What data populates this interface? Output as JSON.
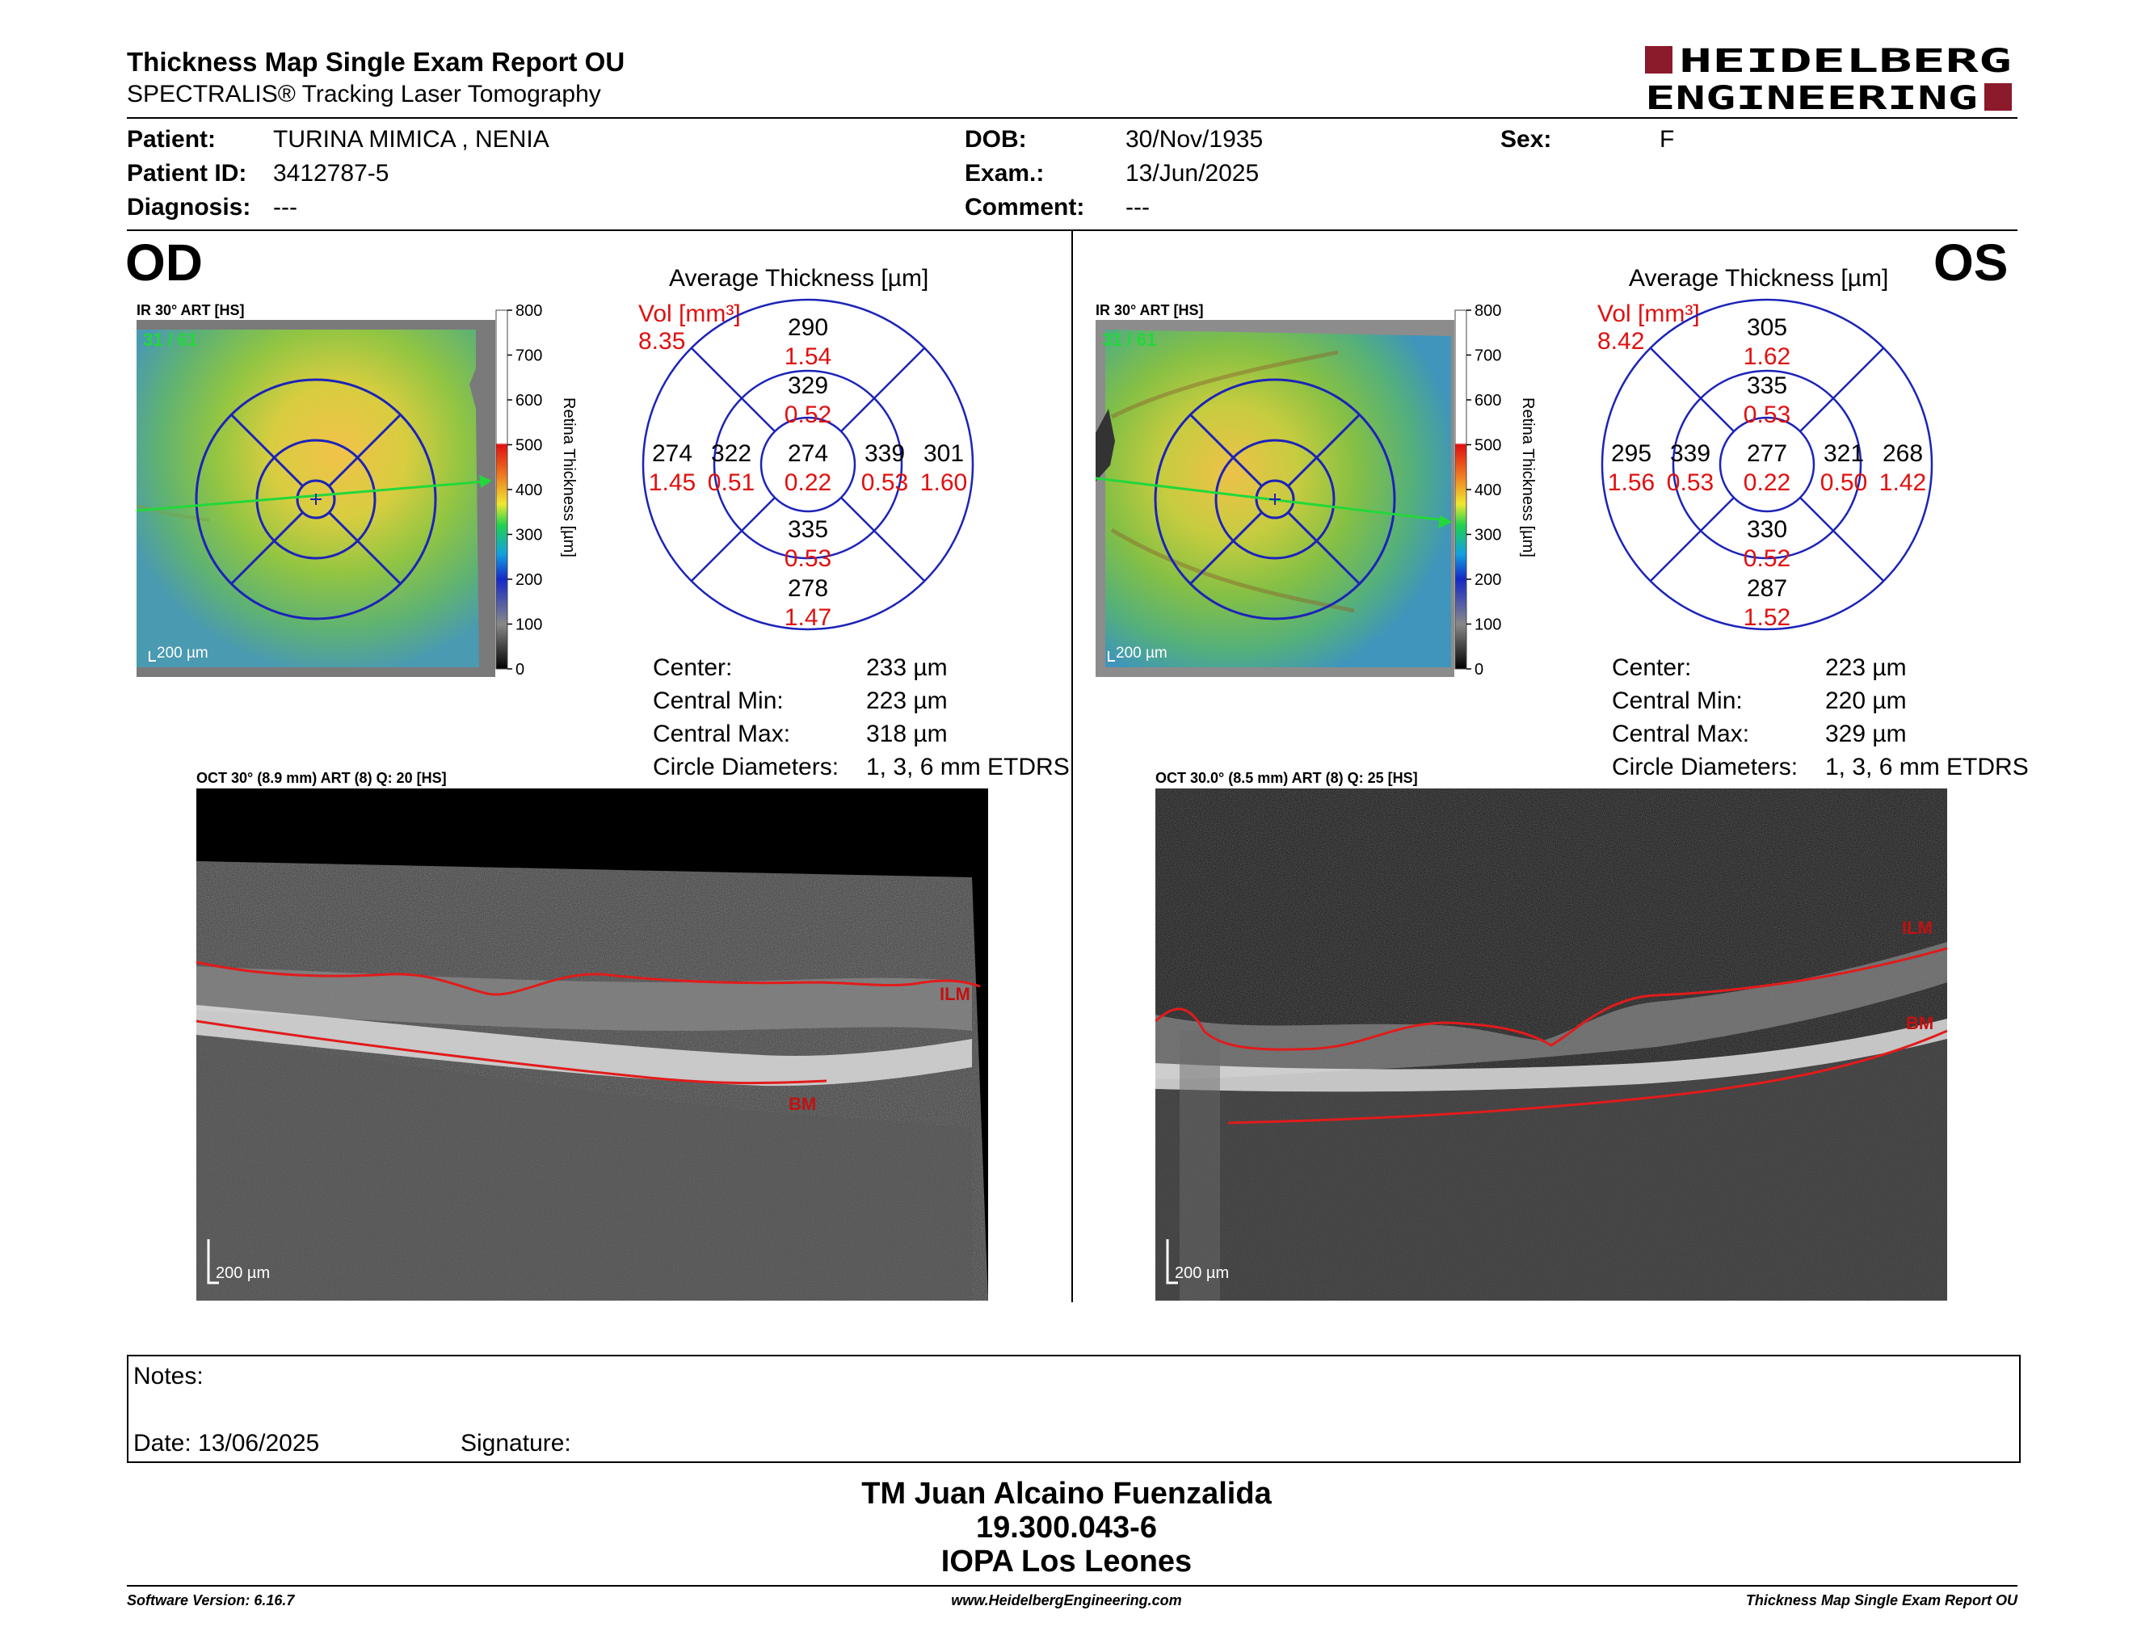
{
  "header": {
    "title": "Thickness Map Single Exam Report OU",
    "subtitle": "SPECTRALIS® Tracking Laser Tomography",
    "logo_line1": "HEIDELBERG",
    "logo_line2": "ENGINEERING",
    "brand_color": "#8b1a2b"
  },
  "patient": {
    "patient_label": "Patient:",
    "patient_value": "TURINA MIMICA , NENIA",
    "id_label": "Patient ID:",
    "id_value": "3412787-5",
    "diag_label": "Diagnosis:",
    "diag_value": "---",
    "dob_label": "DOB:",
    "dob_value": "30/Nov/1935",
    "exam_label": "Exam.:",
    "exam_value": "13/Jun/2025",
    "comment_label": "Comment:",
    "comment_value": "---",
    "sex_label": "Sex:",
    "sex_value": "F"
  },
  "scale": {
    "ticks": [
      "800",
      "700",
      "600",
      "500",
      "400",
      "300",
      "200",
      "100",
      "0"
    ],
    "label": "Retina  Thickness [µm]"
  },
  "od": {
    "eye": "OD",
    "ir_label": "IR 30° ART [HS]",
    "frame_count": "31 / 61",
    "scale_bar": "200 µm",
    "avg_title": "Average Thickness [µm]",
    "vol_label": "Vol [mm³]",
    "vol_value": "8.35",
    "grid": {
      "center_t": "274",
      "center_v": "0.22",
      "in_sup_t": "329",
      "in_sup_v": "0.52",
      "in_inf_t": "335",
      "in_inf_v": "0.53",
      "in_left_t": "322",
      "in_left_v": "0.51",
      "in_right_t": "339",
      "in_right_v": "0.53",
      "out_sup_t": "290",
      "out_sup_v": "1.54",
      "out_inf_t": "278",
      "out_inf_v": "1.47",
      "out_left_t": "274",
      "out_left_v": "1.45",
      "out_right_t": "301",
      "out_right_v": "1.60"
    },
    "stats": {
      "center_label": "Center:",
      "center_value": "233 µm",
      "cmin_label": "Central Min:",
      "cmin_value": "223 µm",
      "cmax_label": "Central Max:",
      "cmax_value": "318 µm",
      "circ_label": "Circle Diameters:",
      "circ_value": "1, 3, 6 mm ETDRS"
    },
    "oct_label": "OCT 30° (8.9 mm) ART (8) Q: 20 [HS]",
    "ilm": "ILM",
    "bm": "BM",
    "oct_scale": "200 µm"
  },
  "os": {
    "eye": "OS",
    "ir_label": "IR 30° ART [HS]",
    "frame_count": "31 / 61",
    "scale_bar": "200 µm",
    "avg_title": "Average Thickness [µm]",
    "vol_label": "Vol [mm³]",
    "vol_value": "8.42",
    "grid": {
      "center_t": "277",
      "center_v": "0.22",
      "in_sup_t": "335",
      "in_sup_v": "0.53",
      "in_inf_t": "330",
      "in_inf_v": "0.52",
      "in_left_t": "339",
      "in_left_v": "0.53",
      "in_right_t": "321",
      "in_right_v": "0.50",
      "out_sup_t": "305",
      "out_sup_v": "1.62",
      "out_inf_t": "287",
      "out_inf_v": "1.52",
      "out_left_t": "295",
      "out_left_v": "1.56",
      "out_right_t": "268",
      "out_right_v": "1.42"
    },
    "stats": {
      "center_label": "Center:",
      "center_value": "223 µm",
      "cmin_label": "Central Min:",
      "cmin_value": "220 µm",
      "cmax_label": "Central Max:",
      "cmax_value": "329 µm",
      "circ_label": "Circle Diameters:",
      "circ_value": "1, 3, 6 mm ETDRS"
    },
    "oct_label": "OCT 30.0° (8.5 mm) ART (8) Q: 25 [HS]",
    "ilm": "ILM",
    "bm": "BM",
    "oct_scale": "200 µm"
  },
  "notes": {
    "notes_label": "Notes:",
    "date_label": "Date: 13/06/2025",
    "signature_label": "Signature:"
  },
  "signature": {
    "line1": "TM Juan Alcaino Fuenzalida",
    "line2": "19.300.043-6",
    "line3": "IOPA Los Leones"
  },
  "footer": {
    "left": "Software Version: 6.16.7",
    "center": "www.HeidelbergEngineering.com",
    "right": "Thickness Map Single Exam Report OU"
  }
}
